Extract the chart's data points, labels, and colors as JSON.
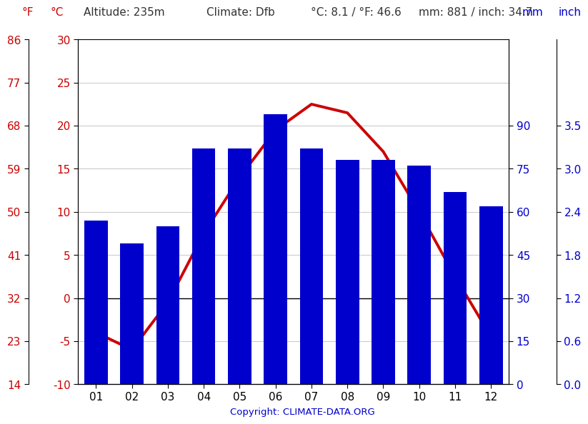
{
  "months": [
    "01",
    "02",
    "03",
    "04",
    "05",
    "06",
    "07",
    "08",
    "09",
    "10",
    "11",
    "12"
  ],
  "precipitation_mm": [
    57,
    49,
    55,
    82,
    82,
    94,
    82,
    78,
    78,
    76,
    67,
    62
  ],
  "temp_actual": [
    -4.0,
    -6.0,
    -0.5,
    7.5,
    14.0,
    19.5,
    22.5,
    21.5,
    17.0,
    10.0,
    2.5,
    -4.5
  ],
  "bar_color": "#0000cc",
  "line_color": "#cc0000",
  "left_axis_C": [
    -10,
    -5,
    0,
    5,
    10,
    15,
    20,
    25,
    30
  ],
  "left_axis_F": [
    14,
    23,
    32,
    41,
    50,
    59,
    68,
    77,
    86
  ],
  "right_axis_mm": [
    0,
    15,
    30,
    45,
    60,
    75,
    90
  ],
  "right_axis_inch": [
    "0.0",
    "0.6",
    "1.2",
    "1.8",
    "2.4",
    "3.0",
    "3.5"
  ],
  "temp_ylim_c": [
    -10,
    30
  ],
  "precip_ylim_mm": [
    0,
    120
  ],
  "copyright": "Copyright: CLIMATE-DATA.ORG",
  "background_color": "#ffffff",
  "grid_color": "#cccccc",
  "red_color": "#cc0000",
  "blue_color": "#0000cc",
  "dark_color": "#333333",
  "bar_width": 0.65
}
